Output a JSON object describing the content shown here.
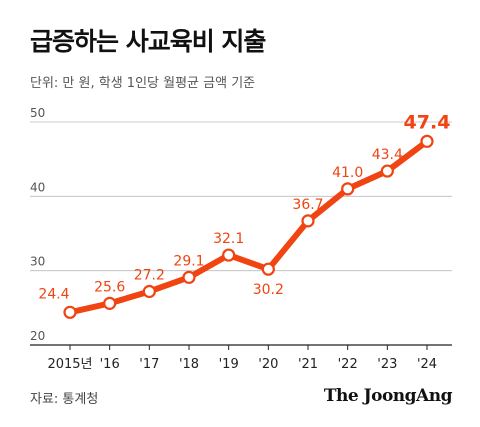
{
  "header": {
    "title": "급증하는 사교육비 지출",
    "subtitle": "단위: 만 원, 학생 1인당 월평균 금액 기준"
  },
  "footer": {
    "source": "자료: 통계청",
    "brand": "The JoongAng"
  },
  "colors": {
    "accent": "#f04412",
    "axis_text": "#555555",
    "grid": "#bbbbbb"
  },
  "chart_data": {
    "type": "line",
    "categories": [
      "2015년",
      "'16",
      "'17",
      "'18",
      "'19",
      "'20",
      "'21",
      "'22",
      "'23",
      "'24"
    ],
    "series": [
      {
        "values": [
          24.4,
          25.6,
          27.2,
          29.1,
          32.1,
          30.2,
          36.7,
          41.0,
          43.4,
          47.4
        ]
      }
    ],
    "data_labels": [
      "24.4",
      "25.6",
      "27.2",
      "29.1",
      "32.1",
      "30.2",
      "36.7",
      "41.0",
      "43.4",
      "47.4"
    ],
    "highlight_last": true,
    "ylim": [
      20,
      50
    ],
    "yticks": [
      20,
      30,
      40,
      50
    ],
    "grid": true,
    "xlabel": "",
    "ylabel": ""
  }
}
